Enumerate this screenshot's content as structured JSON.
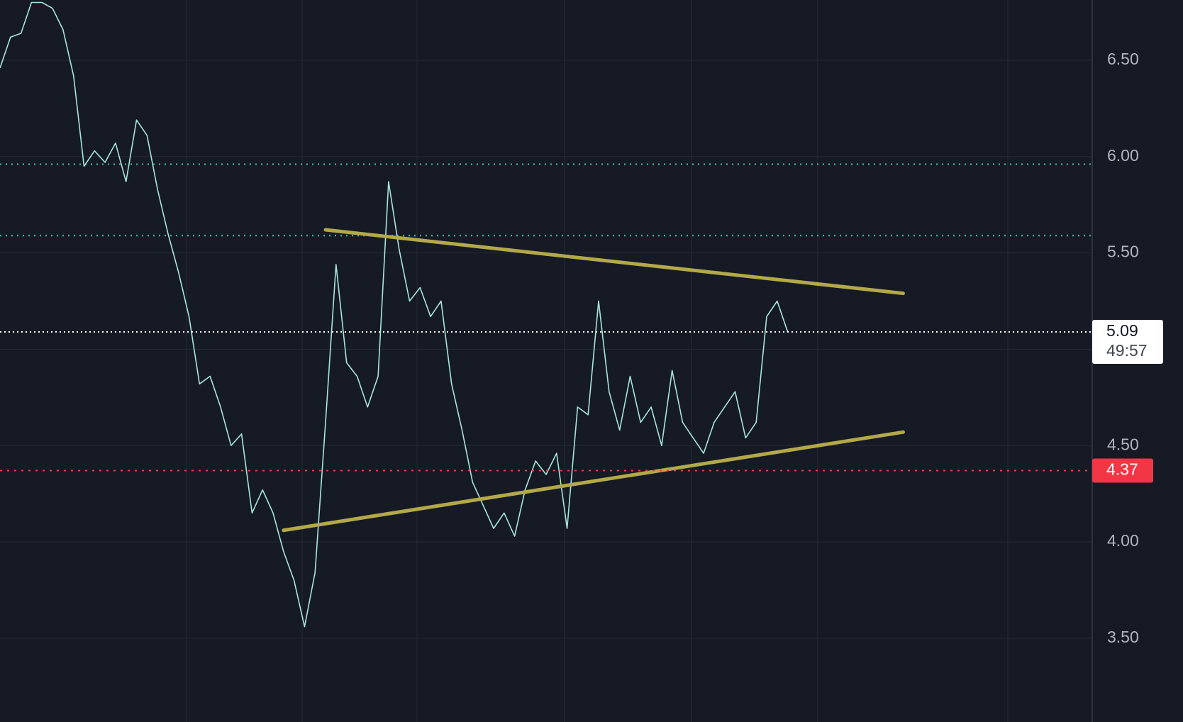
{
  "chart_data": {
    "type": "line",
    "categories": [
      null,
      null,
      null,
      null,
      null,
      null,
      null,
      null,
      null,
      null,
      null,
      null,
      null,
      null,
      null,
      null,
      null,
      null,
      null,
      null,
      null,
      null,
      null,
      null,
      null,
      null,
      null,
      null,
      null,
      null,
      null,
      null,
      null,
      null,
      null,
      null,
      null,
      null,
      null,
      null,
      null,
      null,
      null,
      null,
      null,
      null,
      null,
      null,
      null,
      null,
      null,
      null,
      null,
      null,
      null,
      null,
      null,
      null,
      null,
      null,
      null,
      null,
      null,
      null,
      null,
      null,
      null,
      null,
      null,
      null,
      null,
      null,
      null,
      null,
      null,
      null,
      null,
      null,
      null,
      null,
      null,
      null,
      null,
      null,
      null,
      null,
      null,
      null,
      null,
      null,
      null,
      null,
      null,
      null,
      null,
      null,
      null,
      null,
      null,
      null,
      null,
      null,
      null,
      null
    ],
    "series": [
      {
        "color": "#a8e6da",
        "values": [
          6.46,
          6.62,
          6.64,
          6.8,
          6.8,
          6.77,
          6.66,
          6.42,
          5.95,
          6.03,
          5.97,
          6.07,
          5.87,
          6.19,
          6.11,
          5.83,
          5.6,
          5.4,
          5.17,
          4.82,
          4.86,
          4.7,
          4.5,
          4.56,
          4.15,
          4.27,
          4.15,
          3.95,
          3.8,
          3.56,
          3.84,
          4.62,
          5.44,
          4.93,
          4.86,
          4.7,
          4.86,
          5.87,
          5.52,
          5.25,
          5.32,
          5.17,
          5.25,
          4.82,
          4.58,
          4.31,
          4.19,
          4.07,
          4.15,
          4.03,
          4.27,
          4.42,
          4.35,
          4.46,
          4.07,
          4.7,
          4.66,
          5.25,
          4.78,
          4.58,
          4.86,
          4.62,
          4.7,
          4.5,
          4.89,
          4.62,
          4.54,
          4.46,
          4.62,
          4.7,
          4.78,
          4.54,
          4.62,
          5.17,
          5.25,
          5.09,
          null,
          null,
          null,
          null,
          null,
          null,
          null,
          null,
          null,
          null,
          null,
          null,
          null,
          null,
          null,
          null,
          null,
          null,
          null,
          null,
          null,
          null,
          null,
          null,
          null,
          null,
          null,
          null
        ]
      }
    ],
    "ylim": [
      3.065,
      6.813
    ],
    "yticks": [
      {
        "value": 3.5,
        "label": "3.50"
      },
      {
        "value": 4,
        "label": "4.00"
      },
      {
        "value": 4.5,
        "label": "4.50"
      },
      {
        "value": 5,
        "label": "5.00"
      },
      {
        "value": 5.5,
        "label": "5.50"
      },
      {
        "value": 6,
        "label": "6.00"
      },
      {
        "value": 6.5,
        "label": "6.50"
      }
    ],
    "grid": true,
    "trendlines": [
      {
        "color": "#b3a948",
        "x": [
          31,
          86
        ],
        "values": [
          5.62,
          5.29
        ]
      },
      {
        "color": "#b3a948",
        "x": [
          27,
          86
        ],
        "values": [
          4.06,
          4.57
        ]
      }
    ],
    "levels": [
      {
        "value": 5.96,
        "color": "#3fa596"
      },
      {
        "value": 5.59,
        "color": "#3fa596"
      }
    ],
    "price_lines": [
      {
        "value": 5.09,
        "color": "#ffffff",
        "countdown": "49:57"
      },
      {
        "value": 4.37,
        "color": "#f23645"
      }
    ]
  }
}
